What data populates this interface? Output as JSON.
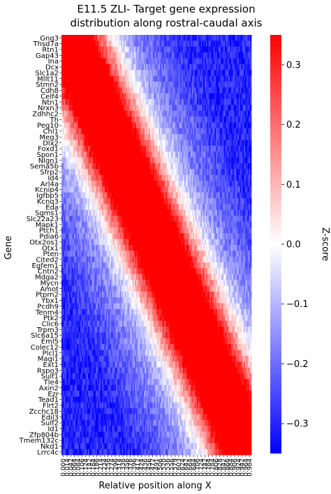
{
  "chart_data": {
    "type": "heatmap",
    "title_lines": [
      "E11.5 ZLI- Target gene expression",
      "distribution along rostral-caudal axis"
    ],
    "xlabel": "Relative position along X",
    "ylabel": "Gene",
    "colorbar_label": "Z-score",
    "colormap": "bwr",
    "vmin": -0.35,
    "vmax": 0.35,
    "colorbar_ticks": [
      {
        "value": 0.3,
        "label": "0.3"
      },
      {
        "value": 0.2,
        "label": "0.2"
      },
      {
        "value": 0.1,
        "label": "0.1"
      },
      {
        "value": 0.0,
        "label": "0.0"
      },
      {
        "value": -0.1,
        "label": "−0.1"
      },
      {
        "value": -0.2,
        "label": "−0.2"
      },
      {
        "value": -0.3,
        "label": "−0.3"
      }
    ],
    "genes": [
      "Gng3",
      "Thsd7a",
      "Rtn1",
      "Gap43",
      "Ina",
      "Dcx",
      "Slc1a2",
      "Mllt11",
      "Stmn2",
      "Cdh8",
      "Celf4",
      "Ntn1",
      "Nrxn3",
      "Zdhhc2",
      "Th",
      "Peg10",
      "Chl1",
      "Meg3",
      "Dlx2",
      "Foxd1",
      "Spon1",
      "Nlgn1",
      "Sema5b",
      "Sfrp2",
      "Id4",
      "Arl4a",
      "Kcnip4",
      "Igfbp5",
      "Kcnq3",
      "Eda",
      "Sgms1",
      "Slc22a23",
      "Mapk1",
      "Ptch1",
      "Pdia6",
      "Otx2os1",
      "Otx1",
      "Pten",
      "Cited2",
      "Egfem1",
      "Cntn2",
      "Mdga2",
      "Mycn",
      "Amot",
      "Ptprn2",
      "Ybx1",
      "Pcdh9",
      "Tenm4",
      "Ptk2",
      "Clic6",
      "Trpm3",
      "Slc6a15",
      "Eml5",
      "Colec12",
      "Plcl1",
      "Magi1",
      "Ext1",
      "Rspo3",
      "Sulf1",
      "Tle4",
      "Axin2",
      "Ezr",
      "Tead1",
      "Flrt2",
      "Zcchc18",
      "Edil3",
      "Sulf2",
      "Id1",
      "Zfp804b",
      "Tmem132c",
      "Nkd1",
      "Lrrc4c"
    ],
    "x_tick_labels": [
      "0.000",
      "0.014",
      "0.042",
      "0.064",
      "0.084",
      "0.106",
      "0.124",
      "0.142",
      "0.164",
      "0.186",
      "0.214",
      "0.234",
      "0.256",
      "0.274",
      "0.296",
      "0.314",
      "0.336",
      "0.356",
      "0.376",
      "0.396",
      "0.412",
      "0.424",
      "0.436",
      "0.456",
      "0.472",
      "0.491",
      "0.506",
      "0.520",
      "0.536",
      "0.556",
      "0.579",
      "0.603",
      "0.624",
      "0.642",
      "0.664",
      "0.684",
      "0.706",
      "0.724",
      "0.742",
      "0.764",
      "0.784",
      "0.806",
      "0.828",
      "0.842",
      "0.866",
      "0.884",
      "0.906",
      "0.924",
      "0.942",
      "0.964",
      "0.984"
    ],
    "x_range": [
      0.0,
      0.984
    ],
    "n_columns": 150,
    "pattern": {
      "description": "Per-gene peak (z ~ +0.35) shifts from rostral (x near 0) for the top genes to caudal (x near 1) for the bottom genes; opposite end is negative (z ~ -0.35)",
      "peak_x_first_gene": 0.03,
      "peak_x_last_gene": 0.97,
      "z_max": 0.35,
      "z_min": -0.35
    }
  }
}
